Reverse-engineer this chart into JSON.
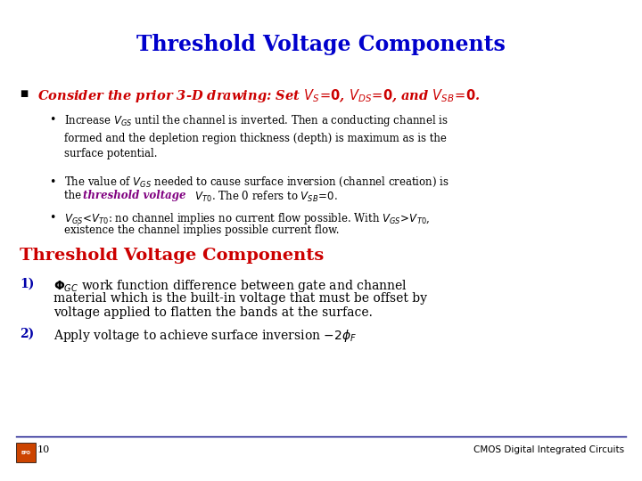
{
  "title": "Threshold Voltage Components",
  "title_color": "#0000CC",
  "title_fontsize": 17,
  "bg_color": "#FFFFFF",
  "bullet_color": "#CC0000",
  "body_color": "#000000",
  "footer_page": "10",
  "footer_right": "CMOS Digital Integrated Circuits",
  "section2_title": "Threshold Voltage Components",
  "section2_color": "#CC0000",
  "num_color": "#0000AA"
}
